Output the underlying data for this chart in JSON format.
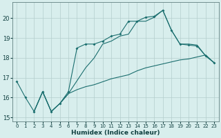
{
  "xlabel": "Humidex (Indice chaleur)",
  "bg_color": "#d8eeed",
  "grid_color": "#b4cecc",
  "line_color": "#1a6e6e",
  "xlim": [
    -0.5,
    23.5
  ],
  "ylim": [
    14.8,
    20.8
  ],
  "xticks": [
    0,
    1,
    2,
    3,
    4,
    5,
    6,
    7,
    8,
    9,
    10,
    11,
    12,
    13,
    14,
    15,
    16,
    17,
    18,
    19,
    20,
    21,
    22,
    23
  ],
  "yticks": [
    15,
    16,
    17,
    18,
    19,
    20
  ],
  "curve1_x": [
    0,
    1,
    2,
    3,
    4,
    5,
    6,
    7,
    8,
    9,
    10,
    11,
    12,
    13,
    14,
    15,
    16,
    17,
    18,
    19,
    20,
    21,
    22,
    23
  ],
  "curve1_y": [
    16.8,
    16.0,
    15.3,
    16.3,
    15.3,
    15.7,
    16.3,
    18.5,
    18.7,
    18.7,
    18.85,
    19.1,
    19.2,
    19.85,
    19.85,
    20.05,
    20.1,
    20.4,
    19.4,
    18.7,
    18.65,
    18.6,
    18.1,
    17.75
  ],
  "curve2_x": [
    2,
    3,
    4,
    5,
    6,
    7,
    8,
    9,
    10,
    11,
    12,
    13,
    14,
    15,
    16,
    17,
    18,
    19,
    20,
    21,
    22,
    23
  ],
  "curve2_y": [
    15.3,
    16.3,
    15.3,
    15.7,
    16.2,
    16.4,
    16.55,
    16.65,
    16.8,
    16.95,
    17.05,
    17.15,
    17.35,
    17.5,
    17.6,
    17.7,
    17.8,
    17.9,
    17.95,
    18.05,
    18.15,
    17.75
  ],
  "curve3_x": [
    2,
    3,
    4,
    5,
    6,
    7,
    8,
    9,
    10,
    11,
    12,
    13,
    14,
    15,
    16,
    17,
    18,
    19,
    20,
    21,
    22,
    23
  ],
  "curve3_y": [
    15.3,
    16.3,
    15.3,
    15.7,
    16.2,
    16.85,
    17.5,
    18.0,
    18.7,
    18.85,
    19.1,
    19.2,
    19.85,
    19.85,
    20.05,
    20.4,
    19.4,
    18.7,
    18.7,
    18.65,
    18.1,
    17.75
  ]
}
